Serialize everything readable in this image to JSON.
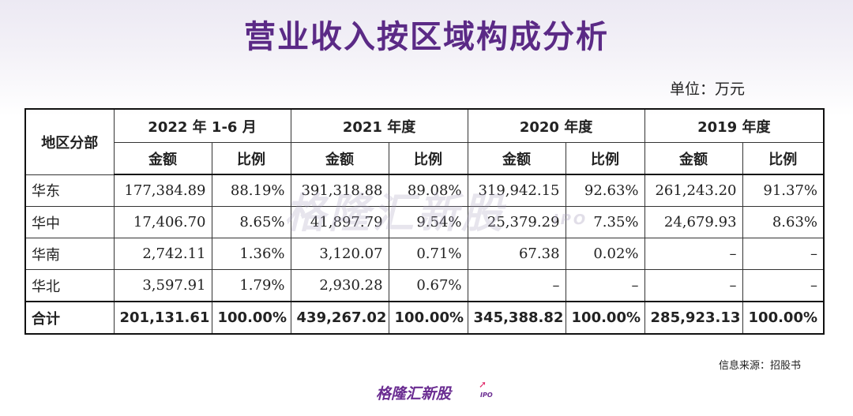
{
  "page": {
    "title": "营业收入按区域构成分析",
    "unit": "单位：万元",
    "source": "信息来源：招股书",
    "logo_text": "格隆汇新股",
    "logo_suffix": "IPO",
    "watermark_text": "格隆汇新股",
    "watermark_suffix": "IPO"
  },
  "table": {
    "region_header": "地区分部",
    "periods": [
      "2022 年 1-6 月",
      "2021 年度",
      "2020 年度",
      "2019 年度"
    ],
    "sub_headers": {
      "amount": "金额",
      "ratio": "比例"
    },
    "rows": [
      {
        "region": "华东",
        "cells": [
          "177,384.89",
          "88.19%",
          "391,318.88",
          "89.08%",
          "319,942.15",
          "92.63%",
          "261,243.20",
          "91.37%"
        ]
      },
      {
        "region": "华中",
        "cells": [
          "17,406.70",
          "8.65%",
          "41,897.79",
          "9.54%",
          "25,379.29",
          "7.35%",
          "24,679.93",
          "8.63%"
        ]
      },
      {
        "region": "华南",
        "cells": [
          "2,742.11",
          "1.36%",
          "3,120.07",
          "0.71%",
          "67.38",
          "0.02%",
          "–",
          "–"
        ]
      },
      {
        "region": "华北",
        "cells": [
          "3,597.91",
          "1.79%",
          "2,930.28",
          "0.67%",
          "–",
          "–",
          "–",
          "–"
        ]
      }
    ],
    "total": {
      "region": "合计",
      "cells": [
        "201,131.61",
        "100.00%",
        "439,267.02",
        "100.00%",
        "345,388.82",
        "100.00%",
        "285,923.13",
        "100.00%"
      ]
    }
  }
}
